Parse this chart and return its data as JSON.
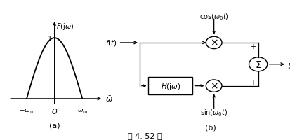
{
  "fig_width": 4.13,
  "fig_height": 2.01,
  "dpi": 100,
  "bg_color": "#ffffff",
  "caption": "题 4. 52 图",
  "panel_a": {
    "label": "(a)"
  },
  "panel_b": {
    "label": "(b)"
  }
}
